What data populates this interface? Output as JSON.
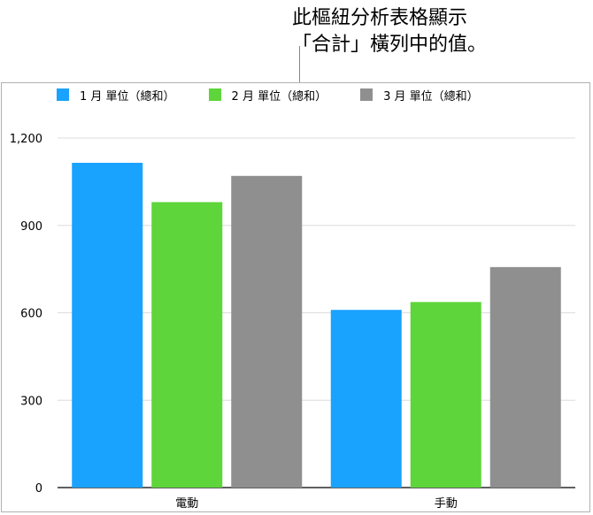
{
  "annotation": {
    "line1": "此樞紐分析表格顯示",
    "line2": "「合計」橫列中的值。"
  },
  "chart_data": {
    "type": "bar",
    "categories": [
      "電動",
      "手動"
    ],
    "series": [
      {
        "name": "1 月 單位（總和）",
        "values": [
          1115,
          610
        ],
        "color": "#1aa2ff"
      },
      {
        "name": "2 月 單位（總和）",
        "values": [
          980,
          637
        ],
        "color": "#5ed53a"
      },
      {
        "name": "3 月 單位（總和）",
        "values": [
          1070,
          757
        ],
        "color": "#8f8f8f"
      }
    ],
    "yticks": [
      "0",
      "300",
      "600",
      "900",
      "1,200"
    ],
    "ylim": [
      0,
      1200
    ],
    "grid": true,
    "legend": "top-left"
  }
}
